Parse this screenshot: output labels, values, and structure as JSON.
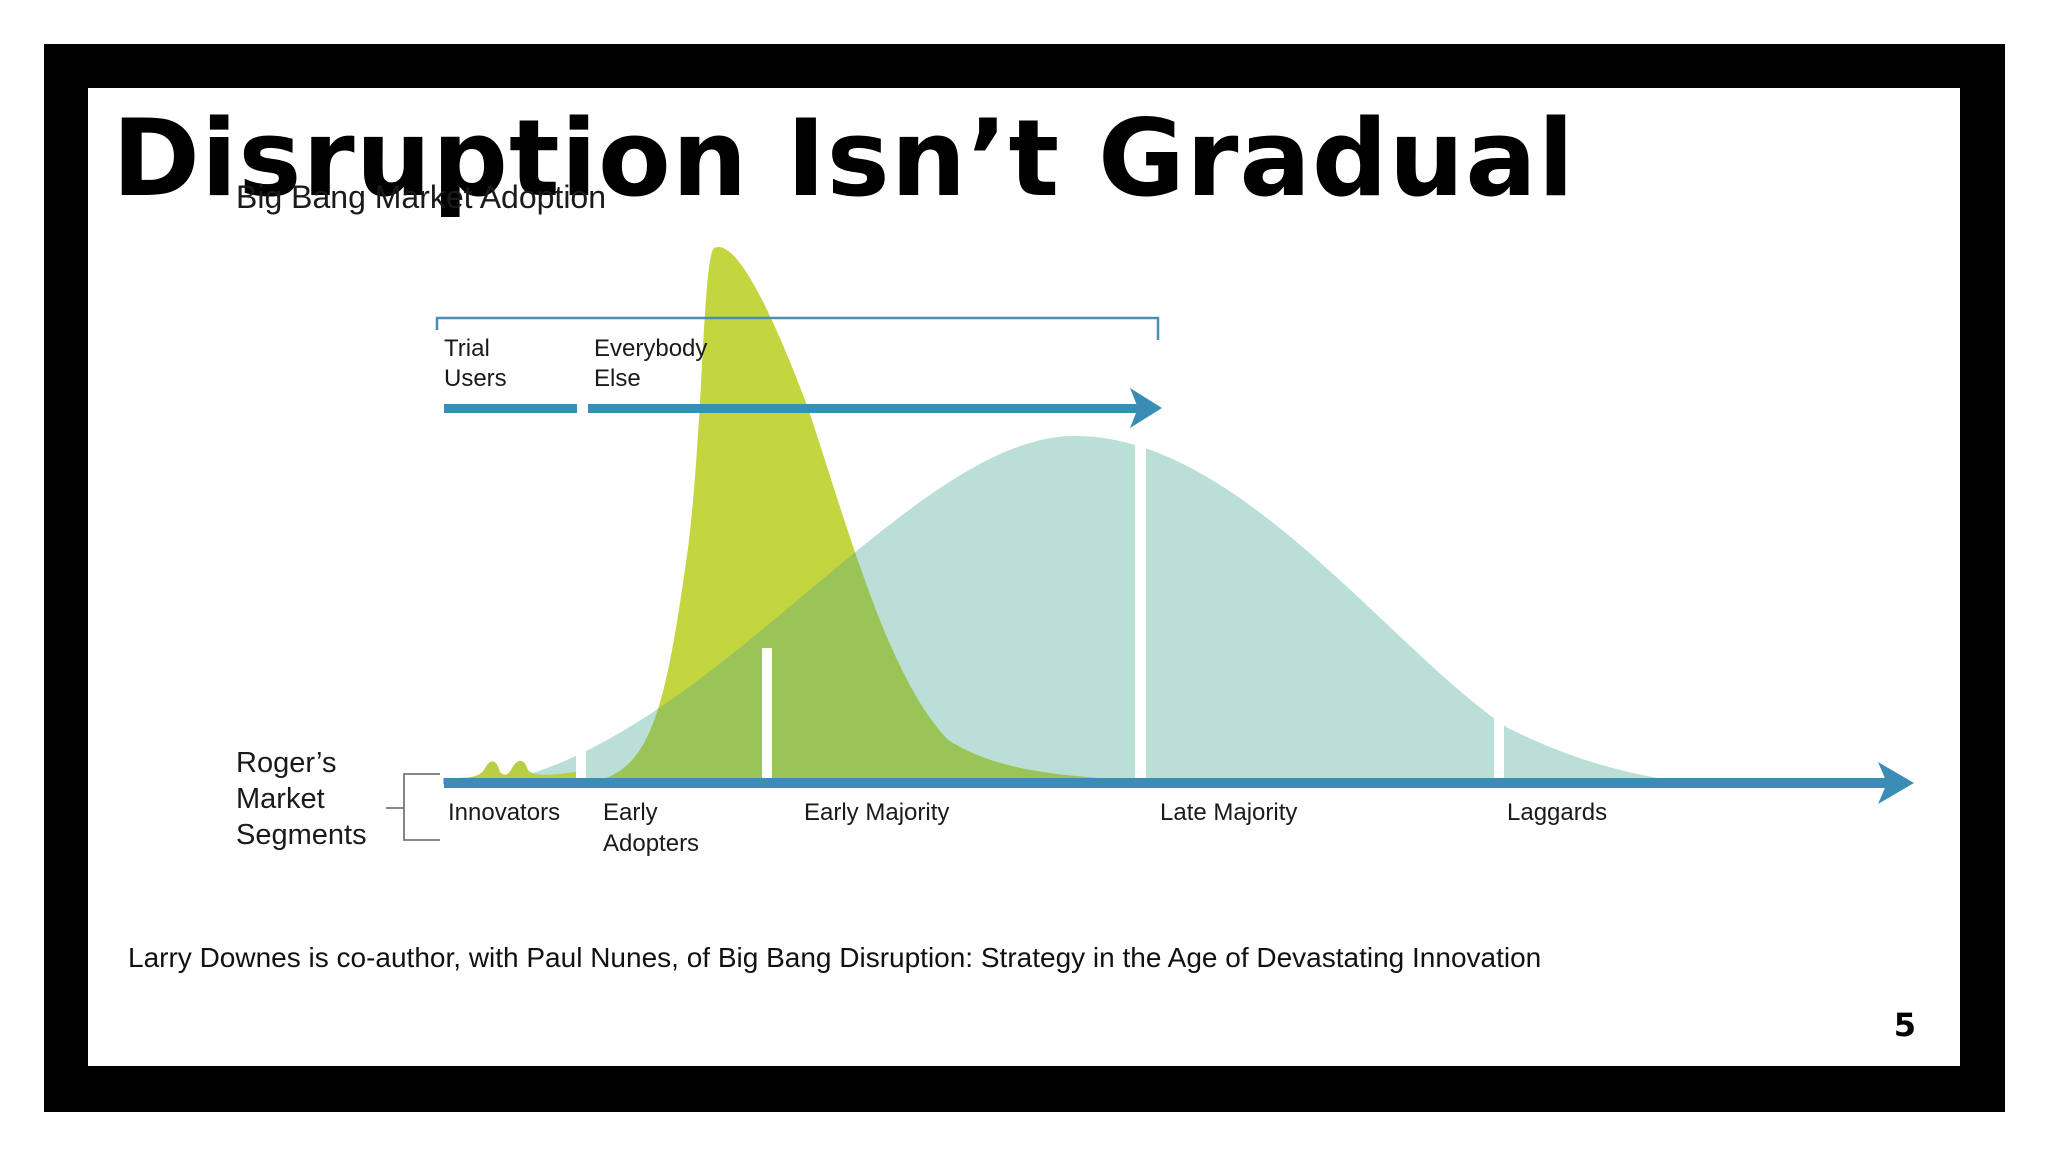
{
  "slide": {
    "title": "Disruption Isn’t Gradual",
    "caption": "Larry Downes is co-author, with Paul Nunes, of Big Bang Disruption: Strategy in the Age of Devastating Innovation",
    "page_number": "5"
  },
  "diagram": {
    "heading": "Big Bang Market Adoption",
    "top_segments": [
      {
        "line1": "Trial",
        "line2": "Users"
      },
      {
        "line1": "Everybody",
        "line2": "Else"
      }
    ],
    "rogers_label": [
      "Roger’s",
      "Market",
      "Segments"
    ],
    "segments": [
      {
        "line1": "Innovators",
        "line2": ""
      },
      {
        "line1": "Early",
        "line2": "Adopters"
      },
      {
        "line1": "Early Majority",
        "line2": ""
      },
      {
        "line1": "Late Majority",
        "line2": ""
      },
      {
        "line1": "Laggards",
        "line2": ""
      }
    ]
  },
  "colors": {
    "big_bang_curve": "#c3d640",
    "rogers_curve": "#b3dcd4",
    "overlap": "#9ac457",
    "arrow": "#3a8db5",
    "bracket": "#4a8fb0"
  }
}
